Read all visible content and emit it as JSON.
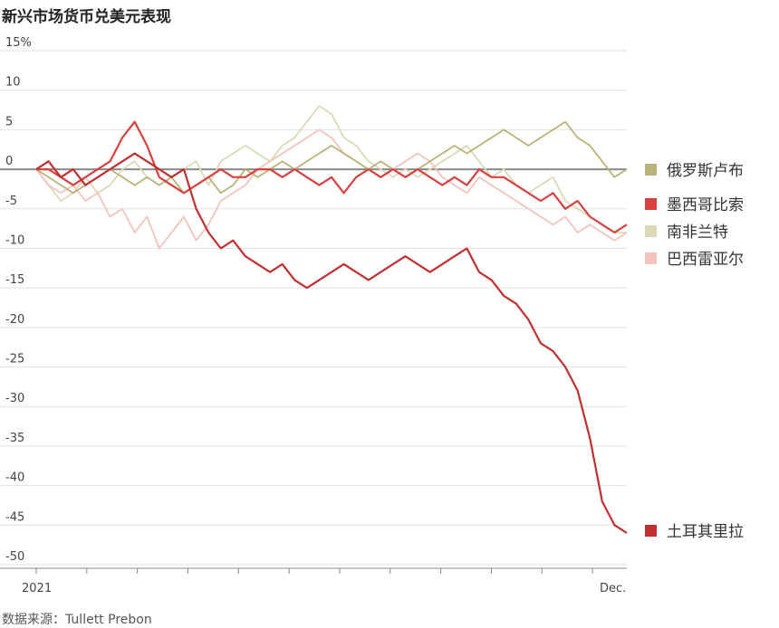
{
  "title": "新兴市场货币兑美元表现",
  "source": "数据来源：Tullett Prebon",
  "chart_data": {
    "type": "line",
    "title": "新兴市场货币兑美元表现",
    "xlabel": "",
    "ylabel": "",
    "x_tick_labels": [
      "2021",
      "Dec."
    ],
    "y_tick_labels": [
      "15%",
      "10",
      "5",
      "0",
      "-5",
      "-10",
      "-15",
      "-20",
      "-25",
      "-30",
      "-35",
      "-40",
      "-45",
      "-50"
    ],
    "ylim": [
      -50,
      15
    ],
    "xlim": [
      0,
      48
    ],
    "grid": true,
    "legend_position": "right",
    "series": [
      {
        "name": "俄罗斯卢布",
        "color": "#b8b47a",
        "x": [
          0,
          1,
          2,
          3,
          4,
          5,
          6,
          7,
          8,
          9,
          10,
          11,
          12,
          13,
          14,
          15,
          16,
          17,
          18,
          19,
          20,
          21,
          22,
          23,
          24,
          25,
          26,
          27,
          28,
          29,
          30,
          31,
          32,
          33,
          34,
          35,
          36,
          37,
          38,
          39,
          40,
          41,
          42,
          43,
          44,
          45,
          46,
          47,
          48
        ],
        "values": [
          0,
          -1,
          -2,
          -3,
          -2,
          -1,
          0,
          -1,
          -2,
          -1,
          -2,
          -1,
          -3,
          -2,
          -1,
          -3,
          -2,
          0,
          -1,
          0,
          1,
          0,
          1,
          2,
          3,
          2,
          1,
          0,
          1,
          0,
          -1,
          0,
          1,
          2,
          3,
          2,
          3,
          4,
          5,
          4,
          3,
          4,
          5,
          6,
          4,
          3,
          1,
          -1,
          0
        ]
      },
      {
        "name": "墨西哥比索",
        "color": "#d94040",
        "x": [
          0,
          1,
          2,
          3,
          4,
          5,
          6,
          7,
          8,
          9,
          10,
          11,
          12,
          13,
          14,
          15,
          16,
          17,
          18,
          19,
          20,
          21,
          22,
          23,
          24,
          25,
          26,
          27,
          28,
          29,
          30,
          31,
          32,
          33,
          34,
          35,
          36,
          37,
          38,
          39,
          40,
          41,
          42,
          43,
          44,
          45,
          46,
          47,
          48
        ],
        "values": [
          0,
          0,
          -1,
          -2,
          -1,
          0,
          1,
          4,
          6,
          3,
          -1,
          -2,
          -3,
          -2,
          -1,
          0,
          -1,
          -1,
          0,
          0,
          -1,
          0,
          -1,
          -2,
          -1,
          -3,
          -1,
          0,
          -1,
          0,
          -1,
          0,
          -1,
          -2,
          -1,
          -2,
          0,
          -1,
          -1,
          -2,
          -3,
          -4,
          -3,
          -5,
          -4,
          -6,
          -7,
          -8,
          -7
        ]
      },
      {
        "name": "南非兰特",
        "color": "#dcd9b8",
        "x": [
          0,
          1,
          2,
          3,
          4,
          5,
          6,
          7,
          8,
          9,
          10,
          11,
          12,
          13,
          14,
          15,
          16,
          17,
          18,
          19,
          20,
          21,
          22,
          23,
          24,
          25,
          26,
          27,
          28,
          29,
          30,
          31,
          32,
          33,
          34,
          35,
          36,
          37,
          38,
          39,
          40,
          41,
          42,
          43,
          44,
          45,
          46,
          47,
          48
        ],
        "values": [
          0,
          -2,
          -4,
          -3,
          -1,
          -3,
          -2,
          0,
          1,
          -1,
          -2,
          -1,
          0,
          1,
          -2,
          1,
          2,
          3,
          2,
          1,
          3,
          4,
          6,
          8,
          7,
          4,
          3,
          1,
          0,
          -1,
          0,
          -1,
          0,
          1,
          2,
          3,
          1,
          -1,
          0,
          -2,
          -3,
          -2,
          -1,
          -4,
          -5,
          -6,
          -7,
          -8,
          -8
        ]
      },
      {
        "name": "巴西雷亚尔",
        "color": "#f2c4bc",
        "x": [
          0,
          1,
          2,
          3,
          4,
          5,
          6,
          7,
          8,
          9,
          10,
          11,
          12,
          13,
          14,
          15,
          16,
          17,
          18,
          19,
          20,
          21,
          22,
          23,
          24,
          25,
          26,
          27,
          28,
          29,
          30,
          31,
          32,
          33,
          34,
          35,
          36,
          37,
          38,
          39,
          40,
          41,
          42,
          43,
          44,
          45,
          46,
          47,
          48
        ],
        "values": [
          0,
          -2,
          -3,
          -2,
          -4,
          -3,
          -6,
          -5,
          -8,
          -6,
          -10,
          -8,
          -6,
          -9,
          -7,
          -4,
          -3,
          -2,
          0,
          1,
          2,
          3,
          4,
          5,
          4,
          2,
          1,
          0,
          -1,
          0,
          1,
          2,
          1,
          -1,
          -2,
          -3,
          -1,
          -2,
          -3,
          -4,
          -5,
          -6,
          -7,
          -6,
          -8,
          -7,
          -8,
          -9,
          -8
        ]
      },
      {
        "name": "土耳其里拉",
        "color": "#c03030",
        "x": [
          0,
          1,
          2,
          3,
          4,
          5,
          6,
          7,
          8,
          9,
          10,
          11,
          12,
          13,
          14,
          15,
          16,
          17,
          18,
          19,
          20,
          21,
          22,
          23,
          24,
          25,
          26,
          27,
          28,
          29,
          30,
          31,
          32,
          33,
          34,
          35,
          36,
          37,
          38,
          39,
          40,
          41,
          42,
          43,
          44,
          45,
          46,
          47,
          48
        ],
        "values": [
          0,
          1,
          -1,
          0,
          -2,
          -1,
          0,
          1,
          2,
          1,
          0,
          -1,
          0,
          -5,
          -8,
          -10,
          -9,
          -11,
          -12,
          -13,
          -12,
          -14,
          -15,
          -14,
          -13,
          -12,
          -13,
          -14,
          -13,
          -12,
          -11,
          -12,
          -13,
          -12,
          -11,
          -10,
          -13,
          -14,
          -16,
          -17,
          -19,
          -22,
          -23,
          -25,
          -28,
          -34,
          -42,
          -45,
          -46
        ]
      }
    ]
  }
}
